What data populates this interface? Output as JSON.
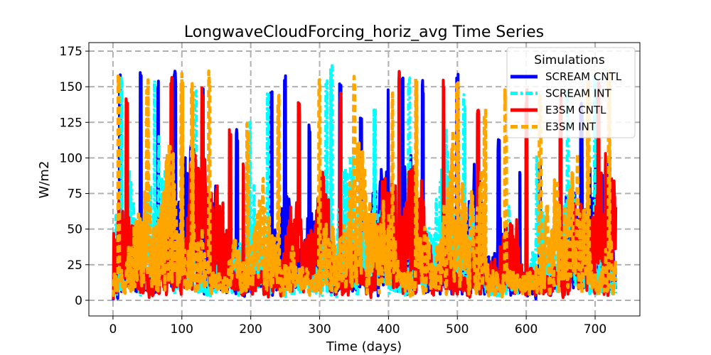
{
  "chart_data": {
    "type": "line",
    "title": "LongwaveCloudForcing_horiz_avg Time Series",
    "xlabel": "Time (days)",
    "ylabel": "W/m2",
    "xlim": [
      -35,
      765
    ],
    "ylim": [
      -11,
      181
    ],
    "xticks": [
      0,
      100,
      200,
      300,
      400,
      500,
      600,
      700
    ],
    "yticks": [
      0,
      25,
      50,
      75,
      100,
      125,
      150,
      175
    ],
    "grid": true,
    "legend": {
      "title": "Simulations",
      "location": "top-right"
    },
    "x_range_days": [
      0,
      730
    ],
    "series": [
      {
        "name": "SCREAM CNTL",
        "color": "#0000ff",
        "style": "solid",
        "peaks": [
          [
            10,
            161
          ],
          [
            40,
            160
          ],
          [
            65,
            155
          ],
          [
            90,
            163
          ],
          [
            130,
            152
          ],
          [
            180,
            120
          ],
          [
            230,
            150
          ],
          [
            250,
            161
          ],
          [
            285,
            125
          ],
          [
            330,
            155
          ],
          [
            360,
            130
          ],
          [
            400,
            150
          ],
          [
            420,
            164
          ],
          [
            450,
            155
          ],
          [
            500,
            160
          ],
          [
            560,
            115
          ],
          [
            590,
            92
          ],
          [
            620,
            100
          ],
          [
            680,
            140
          ],
          [
            720,
            105
          ]
        ]
      },
      {
        "name": "SCREAM INT",
        "color": "#00ffff",
        "style": "dashdot",
        "peaks": [
          [
            5,
            60
          ],
          [
            12,
            158
          ],
          [
            60,
            155
          ],
          [
            120,
            148
          ],
          [
            200,
            130
          ],
          [
            225,
            149
          ],
          [
            310,
            162
          ],
          [
            317,
            171
          ],
          [
            380,
            145
          ],
          [
            430,
            158
          ],
          [
            510,
            148
          ],
          [
            575,
            68
          ],
          [
            615,
            102
          ],
          [
            660,
            150
          ],
          [
            700,
            160
          ]
        ]
      },
      {
        "name": "E3SM CNTL",
        "color": "#ff0000",
        "style": "solid",
        "peaks": [
          [
            3,
            22
          ],
          [
            20,
            150
          ],
          [
            85,
            164
          ],
          [
            130,
            150
          ],
          [
            170,
            120
          ],
          [
            190,
            100
          ],
          [
            270,
            140
          ],
          [
            330,
            150
          ],
          [
            415,
            166
          ],
          [
            480,
            155
          ],
          [
            530,
            140
          ],
          [
            600,
            150
          ],
          [
            650,
            145
          ],
          [
            705,
            160
          ]
        ]
      },
      {
        "name": "E3SM INT",
        "color": "#ffa500",
        "style": "dashed",
        "peaks": [
          [
            8,
            158
          ],
          [
            50,
            158
          ],
          [
            100,
            165
          ],
          [
            115,
            157
          ],
          [
            140,
            165
          ],
          [
            195,
            125
          ],
          [
            240,
            145
          ],
          [
            300,
            155
          ],
          [
            350,
            158
          ],
          [
            405,
            150
          ],
          [
            440,
            156
          ],
          [
            500,
            162
          ],
          [
            540,
            140
          ],
          [
            570,
            148
          ],
          [
            620,
            145
          ],
          [
            690,
            157
          ],
          [
            720,
            165
          ]
        ]
      }
    ]
  }
}
